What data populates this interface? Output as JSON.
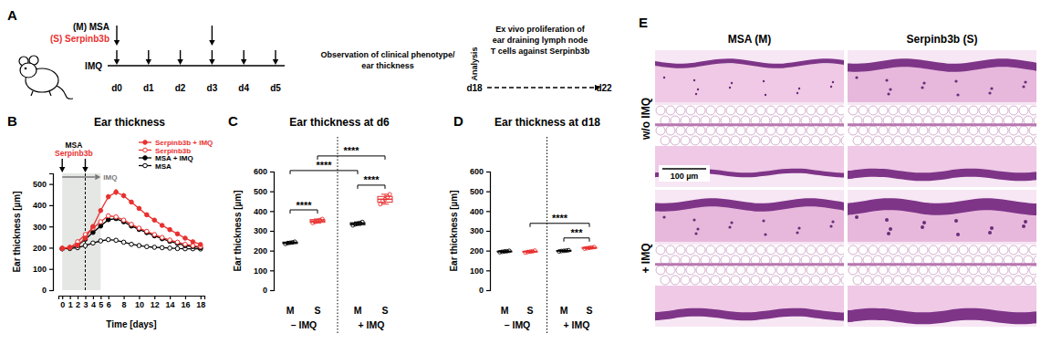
{
  "timeline": {
    "panel_label": "A",
    "agents": [
      {
        "label": "(M) MSA",
        "color": "#000000"
      },
      {
        "label": "(S) Serpinb3b",
        "color": "#e8312f"
      }
    ],
    "agent_days": [
      "d0",
      "d3"
    ],
    "imq_label": "IMQ",
    "imq_days": [
      "d0",
      "d1",
      "d2",
      "d3",
      "d4",
      "d5"
    ],
    "observation": [
      "Observation of clinical phenotype/",
      "ear thickness"
    ],
    "analysis": "Analysis",
    "analysis_day": "d18",
    "end_day": "d22",
    "ex_vivo": [
      "Ex vivo proliferation of",
      "ear draining lymph node",
      "T cells against Serpinb3b"
    ]
  },
  "chart_data": [
    {
      "type": "line",
      "panel_label": "B",
      "title": "Ear thickness",
      "x_label": "Time [days]",
      "y_label": "Ear thickness [µm]",
      "x": [
        0,
        1,
        2,
        3,
        4,
        5,
        6,
        7,
        8,
        9,
        10,
        11,
        12,
        13,
        14,
        15,
        16,
        17,
        18
      ],
      "xlim": [
        -0.5,
        18.5
      ],
      "xticks": [
        0,
        1,
        2,
        3,
        4,
        5,
        6,
        8,
        10,
        12,
        14,
        16,
        18
      ],
      "ylim": [
        0,
        550
      ],
      "yticks": [
        0,
        100,
        200,
        300,
        400,
        500
      ],
      "legend": "top-right",
      "series": [
        {
          "name": "Serpinb3b + IMQ",
          "color": "#e8312f",
          "marker": "filled-circle",
          "values": [
            198,
            202,
            212,
            245,
            300,
            375,
            440,
            462,
            445,
            415,
            385,
            355,
            330,
            305,
            285,
            265,
            245,
            228,
            215
          ],
          "errors": [
            3,
            3,
            4,
            6,
            8,
            10,
            12,
            15,
            12,
            10,
            9,
            8,
            8,
            7,
            6,
            6,
            5,
            4,
            4
          ]
        },
        {
          "name": "Serpinb3b",
          "color": "#e8312f",
          "marker": "open-circle",
          "values": [
            196,
            200,
            228,
            262,
            292,
            322,
            350,
            345,
            330,
            310,
            292,
            277,
            262,
            248,
            236,
            226,
            216,
            210,
            205
          ],
          "errors": [
            3,
            3,
            4,
            5,
            6,
            7,
            8,
            8,
            7,
            6,
            6,
            5,
            5,
            5,
            4,
            4,
            4,
            3,
            3
          ]
        },
        {
          "name": "MSA + IMQ",
          "color": "#000000",
          "marker": "filled-circle",
          "values": [
            195,
            200,
            210,
            240,
            272,
            302,
            332,
            337,
            322,
            302,
            286,
            271,
            256,
            242,
            230,
            220,
            210,
            205,
            200
          ],
          "errors": [
            3,
            3,
            4,
            5,
            6,
            7,
            8,
            8,
            7,
            6,
            6,
            5,
            5,
            5,
            4,
            4,
            4,
            3,
            3
          ]
        },
        {
          "name": "MSA",
          "color": "#000000",
          "marker": "open-circle",
          "values": [
            195,
            196,
            200,
            210,
            222,
            232,
            238,
            235,
            226,
            216,
            210,
            205,
            202,
            200,
            198,
            196,
            195,
            195,
            194
          ],
          "errors": [
            2,
            2,
            3,
            3,
            4,
            4,
            4,
            4,
            3,
            3,
            3,
            3,
            3,
            2,
            2,
            2,
            2,
            2,
            2
          ]
        }
      ],
      "annotations": [
        {
          "text": "MSA",
          "color": "#000000"
        },
        {
          "text": "Serpinb3b",
          "color": "#e8312f"
        },
        {
          "text": "IMQ",
          "color": "#777777"
        }
      ],
      "injection_days": [
        0,
        3
      ],
      "treatment_days": [
        0,
        5
      ]
    },
    {
      "type": "box",
      "panel_label": "C",
      "title": "Ear thickness at d6",
      "y_label": "Ear thickness [µm]",
      "categories": [
        "M",
        "S",
        "M",
        "S"
      ],
      "groups": [
        {
          "label": "– IMQ",
          "members": [
            0,
            1
          ]
        },
        {
          "label": "+ IMQ",
          "members": [
            2,
            3
          ]
        }
      ],
      "colors": [
        "#000000",
        "#e8312f",
        "#000000",
        "#e8312f"
      ],
      "values": [
        [
          234,
          238,
          240,
          242,
          245
        ],
        [
          340,
          345,
          350,
          355,
          360
        ],
        [
          328,
          333,
          337,
          340,
          345
        ],
        [
          435,
          450,
          460,
          470,
          485
        ]
      ],
      "boxes": [
        {
          "min": 234,
          "q1": 236,
          "median": 240,
          "q3": 243,
          "max": 245
        },
        {
          "min": 340,
          "q1": 343,
          "median": 350,
          "q3": 357,
          "max": 360
        },
        {
          "min": 328,
          "q1": 331,
          "median": 337,
          "q3": 341,
          "max": 345
        },
        {
          "min": 435,
          "q1": 445,
          "median": 460,
          "q3": 474,
          "max": 485
        }
      ],
      "ylim": [
        0,
        600
      ],
      "yticks": [
        0,
        100,
        200,
        300,
        400,
        500,
        600
      ],
      "significance": [
        {
          "from": 0,
          "to": 1,
          "label": "****"
        },
        {
          "from": 2,
          "to": 3,
          "label": "****"
        },
        {
          "from": 0,
          "to": 2,
          "label": "****"
        },
        {
          "from": 1,
          "to": 3,
          "label": "****"
        }
      ]
    },
    {
      "type": "box",
      "panel_label": "D",
      "title": "Ear thickness at d18",
      "y_label": "Ear thickness [µm]",
      "categories": [
        "M",
        "S",
        "M",
        "S"
      ],
      "groups": [
        {
          "label": "– IMQ",
          "members": [
            0,
            1
          ]
        },
        {
          "label": "+ IMQ",
          "members": [
            2,
            3
          ]
        }
      ],
      "colors": [
        "#000000",
        "#e8312f",
        "#000000",
        "#e8312f"
      ],
      "values": [
        [
          192,
          194,
          196,
          197,
          199
        ],
        [
          190,
          193,
          195,
          197,
          200
        ],
        [
          196,
          198,
          199,
          200,
          202
        ],
        [
          210,
          212,
          214,
          216,
          218
        ]
      ],
      "boxes": [
        {
          "min": 192,
          "q1": 194,
          "median": 196,
          "q3": 197,
          "max": 199
        },
        {
          "min": 190,
          "q1": 193,
          "median": 195,
          "q3": 197,
          "max": 200
        },
        {
          "min": 196,
          "q1": 198,
          "median": 199,
          "q3": 200,
          "max": 202
        },
        {
          "min": 210,
          "q1": 212,
          "median": 214,
          "q3": 216,
          "max": 218
        }
      ],
      "ylim": [
        0,
        600
      ],
      "yticks": [
        0,
        100,
        200,
        300,
        400,
        500,
        600
      ],
      "significance": [
        {
          "from": 1,
          "to": 3,
          "label": "****"
        },
        {
          "from": 2,
          "to": 3,
          "label": "***"
        }
      ]
    }
  ],
  "histology": {
    "panel_label": "E",
    "columns": [
      "MSA (M)",
      "Serpinb3b (S)"
    ],
    "rows": [
      "w/o IMQ",
      "+ IMQ"
    ],
    "scale_bar": "100 µm"
  }
}
